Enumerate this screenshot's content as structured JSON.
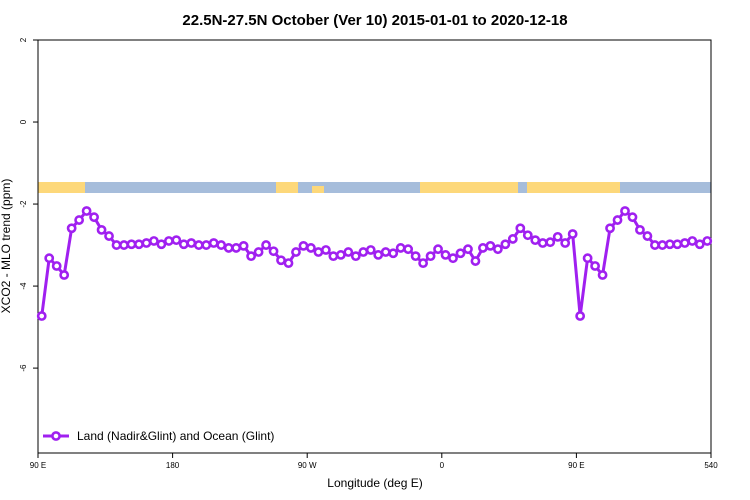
{
  "chart_data": {
    "type": "line",
    "title": "22.5N-27.5N October (Ver 10)   2015-01-01 to 2020-12-18",
    "x_label": "Longitude (deg E)",
    "y_label": "XCO2 - MLO trend (ppm)",
    "xlim": [
      90,
      540
    ],
    "ylim": [
      -8.07,
      2
    ],
    "xticks": [
      {
        "value": 90,
        "label": "90 E"
      },
      180,
      {
        "value": 270,
        "label": "90 W"
      },
      {
        "value": 360,
        "label": "0"
      },
      {
        "value": 450,
        "label": "90 E"
      },
      540
    ],
    "yticks": [
      -6,
      -4,
      -2,
      0,
      2
    ],
    "legend": "bottom-left",
    "x": [
      92.5,
      97.5,
      102.5,
      107.5,
      112.5,
      117.5,
      122.5,
      127.5,
      132.5,
      137.5,
      142.5,
      147.5,
      152.5,
      157.5,
      162.5,
      167.5,
      172.5,
      177.5,
      182.5,
      187.5,
      192.5,
      197.5,
      202.5,
      207.5,
      212.5,
      217.5,
      222.5,
      227.5,
      232.5,
      237.5,
      242.5,
      247.5,
      252.5,
      257.5,
      262.5,
      267.5,
      272.5,
      277.5,
      282.5,
      287.5,
      292.5,
      297.5,
      302.5,
      307.5,
      312.5,
      317.5,
      322.5,
      327.5,
      332.5,
      337.5,
      342.5,
      347.5,
      352.5,
      357.5,
      362.5,
      367.5,
      372.5,
      377.5,
      382.5,
      387.5,
      392.5,
      397.5,
      402.5,
      407.5,
      412.5,
      417.5,
      422.5,
      427.5,
      432.5,
      437.5,
      442.5,
      447.5,
      452.5,
      457.5,
      462.5,
      467.5,
      472.5,
      477.5,
      482.5,
      487.5,
      492.5,
      497.5,
      502.5,
      507.5,
      512.5,
      517.5,
      522.5,
      527.5,
      532.5,
      537.5
    ],
    "series": [
      {
        "name": "Land (Nadir&Glint) and Ocean (Glint)",
        "color": "#a020f0",
        "values": [
          -4.73,
          -3.32,
          -3.51,
          -3.73,
          -2.59,
          -2.39,
          -2.17,
          -2.32,
          -2.63,
          -2.78,
          -3.0,
          -3.0,
          -2.98,
          -2.98,
          -2.95,
          -2.9,
          -2.98,
          -2.9,
          -2.88,
          -2.98,
          -2.95,
          -3.0,
          -3.0,
          -2.95,
          -3.0,
          -3.07,
          -3.07,
          -3.02,
          -3.27,
          -3.17,
          -3.0,
          -3.15,
          -3.37,
          -3.44,
          -3.17,
          -3.02,
          -3.07,
          -3.17,
          -3.12,
          -3.27,
          -3.24,
          -3.17,
          -3.27,
          -3.17,
          -3.12,
          -3.24,
          -3.17,
          -3.2,
          -3.07,
          -3.1,
          -3.27,
          -3.44,
          -3.27,
          -3.1,
          -3.24,
          -3.32,
          -3.2,
          -3.1,
          -3.39,
          -3.07,
          -3.02,
          -3.1,
          -2.98,
          -2.85,
          -2.59,
          -2.76,
          -2.88,
          -2.95,
          -2.93,
          -2.8,
          -2.95,
          -2.73,
          -4.73,
          -3.32,
          -3.51,
          -3.73,
          -2.59,
          -2.39,
          -2.17,
          -2.32,
          -2.63,
          -2.78,
          -3.0,
          -3.0,
          -2.98,
          -2.98,
          -2.95,
          -2.9,
          -2.98,
          -2.9
        ]
      }
    ]
  }
}
